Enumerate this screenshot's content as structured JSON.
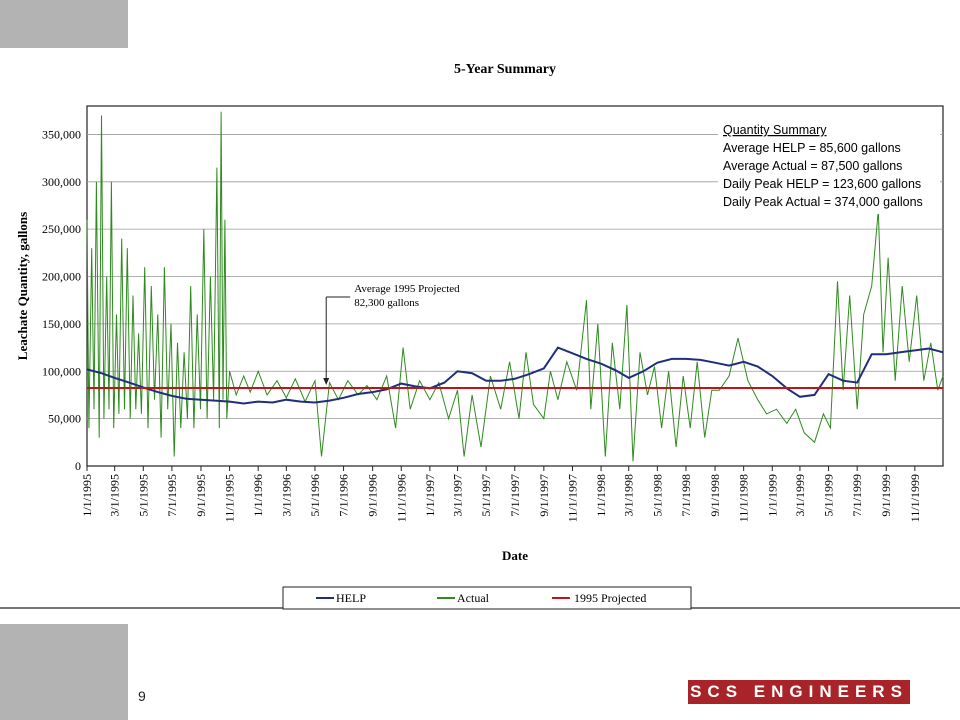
{
  "slide": {
    "page_number": "9",
    "logo_text": "SCS ENGINEERS",
    "logo_color": "#a92429"
  },
  "chart_data": {
    "type": "line",
    "title": "5-Year Summary",
    "xlabel": "Date",
    "ylabel": "Leachate Quantity, gallons",
    "ylim": [
      0,
      380000
    ],
    "xlim": [
      "1995-01-01",
      "1999-12-31"
    ],
    "yticks": [
      "0",
      "50,000",
      "100,000",
      "150,000",
      "200,000",
      "250,000",
      "300,000",
      "350,000"
    ],
    "xticks": [
      "1/1/1995",
      "3/1/1995",
      "5/1/1995",
      "7/1/1995",
      "9/1/1995",
      "11/1/1995",
      "1/1/1996",
      "3/1/1996",
      "5/1/1996",
      "7/1/1996",
      "9/1/1996",
      "11/1/1996",
      "1/1/1997",
      "3/1/1997",
      "5/1/1997",
      "7/1/1997",
      "9/1/1997",
      "11/1/1997",
      "1/1/1998",
      "3/1/1998",
      "5/1/1998",
      "7/1/1998",
      "9/1/1998",
      "11/1/1998",
      "1/1/1999",
      "3/1/1999",
      "5/1/1999",
      "7/1/1999",
      "9/1/1999",
      "11/1/1999"
    ],
    "grid": true,
    "legend_position": "bottom",
    "summary_box": {
      "heading": "Quantity Summary",
      "lines": [
        "Average HELP = 85,600 gallons",
        "Average Actual  = 87,500 gallons",
        "Daily Peak HELP = 123,600 gallons",
        "Daily Peak Actual = 374,000 gallons"
      ]
    },
    "annotation": {
      "lines": [
        "Average 1995 Projected",
        "82,300 gallons"
      ],
      "x": "1996-05-25",
      "y": 82300
    },
    "series": [
      {
        "name": "HELP",
        "color": "#1f2f7a",
        "points": [
          [
            "1995-01-01",
            102000
          ],
          [
            "1995-02-01",
            98000
          ],
          [
            "1995-03-01",
            93000
          ],
          [
            "1995-04-01",
            88000
          ],
          [
            "1995-05-01",
            83000
          ],
          [
            "1995-06-01",
            78000
          ],
          [
            "1995-07-01",
            74000
          ],
          [
            "1995-08-01",
            71000
          ],
          [
            "1995-09-01",
            70000
          ],
          [
            "1995-10-01",
            69000
          ],
          [
            "1995-11-01",
            68000
          ],
          [
            "1995-12-01",
            66000
          ],
          [
            "1996-01-01",
            68000
          ],
          [
            "1996-02-01",
            67000
          ],
          [
            "1996-03-01",
            70000
          ],
          [
            "1996-04-01",
            68000
          ],
          [
            "1996-05-01",
            67000
          ],
          [
            "1996-06-01",
            69000
          ],
          [
            "1996-07-01",
            72000
          ],
          [
            "1996-08-01",
            76000
          ],
          [
            "1996-09-01",
            78000
          ],
          [
            "1996-10-01",
            81000
          ],
          [
            "1996-11-01",
            87000
          ],
          [
            "1996-12-01",
            84000
          ],
          [
            "1997-01-01",
            82000
          ],
          [
            "1997-02-01",
            88000
          ],
          [
            "1997-03-01",
            100000
          ],
          [
            "1997-04-01",
            98000
          ],
          [
            "1997-05-01",
            90000
          ],
          [
            "1997-06-01",
            90000
          ],
          [
            "1997-07-01",
            92000
          ],
          [
            "1997-08-01",
            97000
          ],
          [
            "1997-09-01",
            103000
          ],
          [
            "1997-10-01",
            125000
          ],
          [
            "1997-11-01",
            119000
          ],
          [
            "1997-12-01",
            113000
          ],
          [
            "1998-01-01",
            108000
          ],
          [
            "1998-02-01",
            101000
          ],
          [
            "1998-03-01",
            93000
          ],
          [
            "1998-04-01",
            100000
          ],
          [
            "1998-05-01",
            109000
          ],
          [
            "1998-06-01",
            113000
          ],
          [
            "1998-07-01",
            113000
          ],
          [
            "1998-08-01",
            112000
          ],
          [
            "1998-09-01",
            109000
          ],
          [
            "1998-10-01",
            106000
          ],
          [
            "1998-11-01",
            110000
          ],
          [
            "1998-12-01",
            105000
          ],
          [
            "1999-01-01",
            95000
          ],
          [
            "1999-02-01",
            82000
          ],
          [
            "1999-03-01",
            73000
          ],
          [
            "1999-04-01",
            75000
          ],
          [
            "1999-05-01",
            97000
          ],
          [
            "1999-06-01",
            90000
          ],
          [
            "1999-07-01",
            88000
          ],
          [
            "1999-08-01",
            118000
          ],
          [
            "1999-09-01",
            118000
          ],
          [
            "1999-10-01",
            120000
          ],
          [
            "1999-11-01",
            122000
          ],
          [
            "1999-12-01",
            124000
          ],
          [
            "1999-12-31",
            120000
          ]
        ]
      },
      {
        "name": "Actual",
        "color": "#2e8b1e",
        "points": [
          [
            "1995-01-01",
            260000
          ],
          [
            "1995-01-05",
            40000
          ],
          [
            "1995-01-11",
            230000
          ],
          [
            "1995-01-16",
            60000
          ],
          [
            "1995-01-21",
            300000
          ],
          [
            "1995-01-27",
            30000
          ],
          [
            "1995-02-01",
            370000
          ],
          [
            "1995-02-06",
            50000
          ],
          [
            "1995-02-12",
            200000
          ],
          [
            "1995-02-17",
            60000
          ],
          [
            "1995-02-22",
            300000
          ],
          [
            "1995-02-27",
            40000
          ],
          [
            "1995-03-05",
            160000
          ],
          [
            "1995-03-10",
            55000
          ],
          [
            "1995-03-16",
            240000
          ],
          [
            "1995-03-22",
            60000
          ],
          [
            "1995-03-28",
            230000
          ],
          [
            "1995-04-03",
            50000
          ],
          [
            "1995-04-09",
            180000
          ],
          [
            "1995-04-15",
            60000
          ],
          [
            "1995-04-21",
            140000
          ],
          [
            "1995-04-27",
            55000
          ],
          [
            "1995-05-04",
            210000
          ],
          [
            "1995-05-11",
            40000
          ],
          [
            "1995-05-18",
            190000
          ],
          [
            "1995-05-25",
            70000
          ],
          [
            "1995-06-01",
            160000
          ],
          [
            "1995-06-08",
            30000
          ],
          [
            "1995-06-15",
            210000
          ],
          [
            "1995-06-22",
            60000
          ],
          [
            "1995-06-29",
            150000
          ],
          [
            "1995-07-06",
            10000
          ],
          [
            "1995-07-13",
            130000
          ],
          [
            "1995-07-20",
            40000
          ],
          [
            "1995-07-27",
            120000
          ],
          [
            "1995-08-03",
            50000
          ],
          [
            "1995-08-10",
            190000
          ],
          [
            "1995-08-17",
            40000
          ],
          [
            "1995-08-24",
            160000
          ],
          [
            "1995-08-31",
            60000
          ],
          [
            "1995-09-07",
            250000
          ],
          [
            "1995-09-14",
            50000
          ],
          [
            "1995-09-21",
            200000
          ],
          [
            "1995-09-28",
            70000
          ],
          [
            "1995-10-05",
            315000
          ],
          [
            "1995-10-10",
            40000
          ],
          [
            "1995-10-14",
            374000
          ],
          [
            "1995-10-18",
            70000
          ],
          [
            "1995-10-22",
            260000
          ],
          [
            "1995-10-26",
            50000
          ],
          [
            "1995-11-01",
            100000
          ],
          [
            "1995-11-15",
            75000
          ],
          [
            "1995-12-01",
            95000
          ],
          [
            "1995-12-15",
            78000
          ],
          [
            "1996-01-01",
            100000
          ],
          [
            "1996-01-20",
            75000
          ],
          [
            "1996-02-10",
            90000
          ],
          [
            "1996-03-01",
            72000
          ],
          [
            "1996-03-20",
            92000
          ],
          [
            "1996-04-10",
            68000
          ],
          [
            "1996-05-01",
            90000
          ],
          [
            "1996-05-15",
            10000
          ],
          [
            "1996-06-01",
            88000
          ],
          [
            "1996-06-20",
            70000
          ],
          [
            "1996-07-10",
            90000
          ],
          [
            "1996-08-01",
            75000
          ],
          [
            "1996-08-20",
            85000
          ],
          [
            "1996-09-10",
            70000
          ],
          [
            "1996-10-01",
            95000
          ],
          [
            "1996-10-20",
            40000
          ],
          [
            "1996-11-05",
            125000
          ],
          [
            "1996-11-20",
            60000
          ],
          [
            "1996-12-10",
            90000
          ],
          [
            "1997-01-01",
            70000
          ],
          [
            "1997-01-20",
            88000
          ],
          [
            "1997-02-10",
            50000
          ],
          [
            "1997-03-01",
            80000
          ],
          [
            "1997-03-15",
            10000
          ],
          [
            "1997-04-01",
            75000
          ],
          [
            "1997-04-20",
            20000
          ],
          [
            "1997-05-10",
            95000
          ],
          [
            "1997-06-01",
            60000
          ],
          [
            "1997-06-20",
            110000
          ],
          [
            "1997-07-10",
            50000
          ],
          [
            "1997-07-25",
            120000
          ],
          [
            "1997-08-10",
            65000
          ],
          [
            "1997-09-01",
            50000
          ],
          [
            "1997-09-15",
            100000
          ],
          [
            "1997-10-01",
            70000
          ],
          [
            "1997-10-20",
            110000
          ],
          [
            "1997-11-10",
            80000
          ],
          [
            "1997-12-01",
            175000
          ],
          [
            "1997-12-10",
            60000
          ],
          [
            "1997-12-25",
            150000
          ],
          [
            "1998-01-10",
            10000
          ],
          [
            "1998-01-25",
            130000
          ],
          [
            "1998-02-10",
            60000
          ],
          [
            "1998-02-25",
            170000
          ],
          [
            "1998-03-10",
            5000
          ],
          [
            "1998-03-25",
            120000
          ],
          [
            "1998-04-10",
            75000
          ],
          [
            "1998-04-25",
            105000
          ],
          [
            "1998-05-10",
            40000
          ],
          [
            "1998-05-25",
            100000
          ],
          [
            "1998-06-10",
            20000
          ],
          [
            "1998-06-25",
            95000
          ],
          [
            "1998-07-10",
            40000
          ],
          [
            "1998-07-25",
            110000
          ],
          [
            "1998-08-10",
            30000
          ],
          [
            "1998-08-25",
            80000
          ],
          [
            "1998-09-10",
            80000
          ],
          [
            "1998-10-01",
            95000
          ],
          [
            "1998-10-20",
            135000
          ],
          [
            "1998-11-10",
            90000
          ],
          [
            "1998-12-01",
            70000
          ],
          [
            "1998-12-20",
            55000
          ],
          [
            "1999-01-10",
            60000
          ],
          [
            "1999-02-01",
            45000
          ],
          [
            "1999-02-20",
            60000
          ],
          [
            "1999-03-10",
            35000
          ],
          [
            "1999-04-01",
            25000
          ],
          [
            "1999-04-20",
            55000
          ],
          [
            "1999-05-05",
            40000
          ],
          [
            "1999-05-20",
            195000
          ],
          [
            "1999-06-01",
            80000
          ],
          [
            "1999-06-15",
            180000
          ],
          [
            "1999-07-01",
            60000
          ],
          [
            "1999-07-15",
            160000
          ],
          [
            "1999-08-01",
            190000
          ],
          [
            "1999-08-15",
            270000
          ],
          [
            "1999-08-25",
            120000
          ],
          [
            "1999-09-05",
            220000
          ],
          [
            "1999-09-20",
            90000
          ],
          [
            "1999-10-05",
            190000
          ],
          [
            "1999-10-20",
            110000
          ],
          [
            "1999-11-05",
            180000
          ],
          [
            "1999-11-20",
            90000
          ],
          [
            "1999-12-05",
            130000
          ],
          [
            "1999-12-20",
            80000
          ],
          [
            "1999-12-31",
            95000
          ]
        ]
      },
      {
        "name": "1995 Projected",
        "color": "#c0141b",
        "points": [
          [
            "1995-01-01",
            82300
          ],
          [
            "1999-12-31",
            82300
          ]
        ]
      }
    ]
  }
}
